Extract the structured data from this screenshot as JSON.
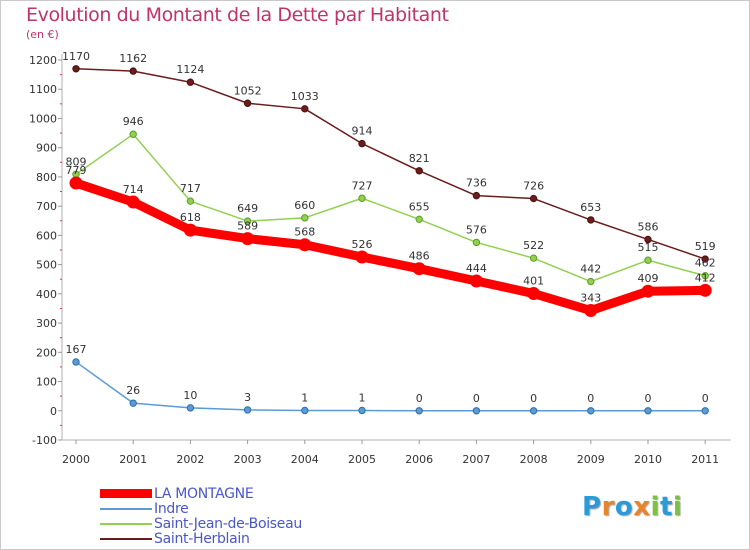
{
  "title": "Evolution du Montant de la Dette par Habitant",
  "unit": "(en €)",
  "logo": {
    "letters": [
      "P",
      "r",
      "o",
      "x",
      "i",
      "t",
      "i"
    ],
    "colors": [
      "#2a9bd8",
      "#e8842c",
      "#2a9bd8",
      "#e8842c",
      "#7bc142",
      "#2a9bd8",
      "#7bc142"
    ]
  },
  "chart_data": {
    "type": "line",
    "title": "Evolution du Montant de la Dette par Habitant",
    "ylabel": "(en €)",
    "xlabel": "",
    "x": [
      "2000",
      "2001",
      "2002",
      "2003",
      "2004",
      "2005",
      "2006",
      "2007",
      "2008",
      "2009",
      "2010",
      "2011"
    ],
    "ylim": [
      -100,
      1200
    ],
    "yticks": [
      -100,
      0,
      100,
      200,
      300,
      400,
      500,
      600,
      700,
      800,
      900,
      1000,
      1100,
      1200
    ],
    "grid": false,
    "legend_position": "bottom-left",
    "series": [
      {
        "name": "LA MONTAGNE",
        "color": "#ff0000",
        "values": [
          779,
          714,
          618,
          589,
          568,
          526,
          486,
          444,
          401,
          343,
          409,
          412
        ]
      },
      {
        "name": "Indre",
        "color": "#5b9bd5",
        "values": [
          167,
          26,
          10,
          3,
          1,
          1,
          0,
          0,
          0,
          0,
          0,
          0
        ]
      },
      {
        "name": "Saint-Jean-de-Boiseau",
        "color": "#92d050",
        "values": [
          809,
          946,
          717,
          649,
          660,
          727,
          655,
          576,
          522,
          442,
          515,
          462
        ]
      },
      {
        "name": "Saint-Herblain",
        "color": "#6b1c1c",
        "values": [
          1170,
          1162,
          1124,
          1052,
          1033,
          914,
          821,
          736,
          726,
          653,
          586,
          519
        ]
      }
    ]
  }
}
